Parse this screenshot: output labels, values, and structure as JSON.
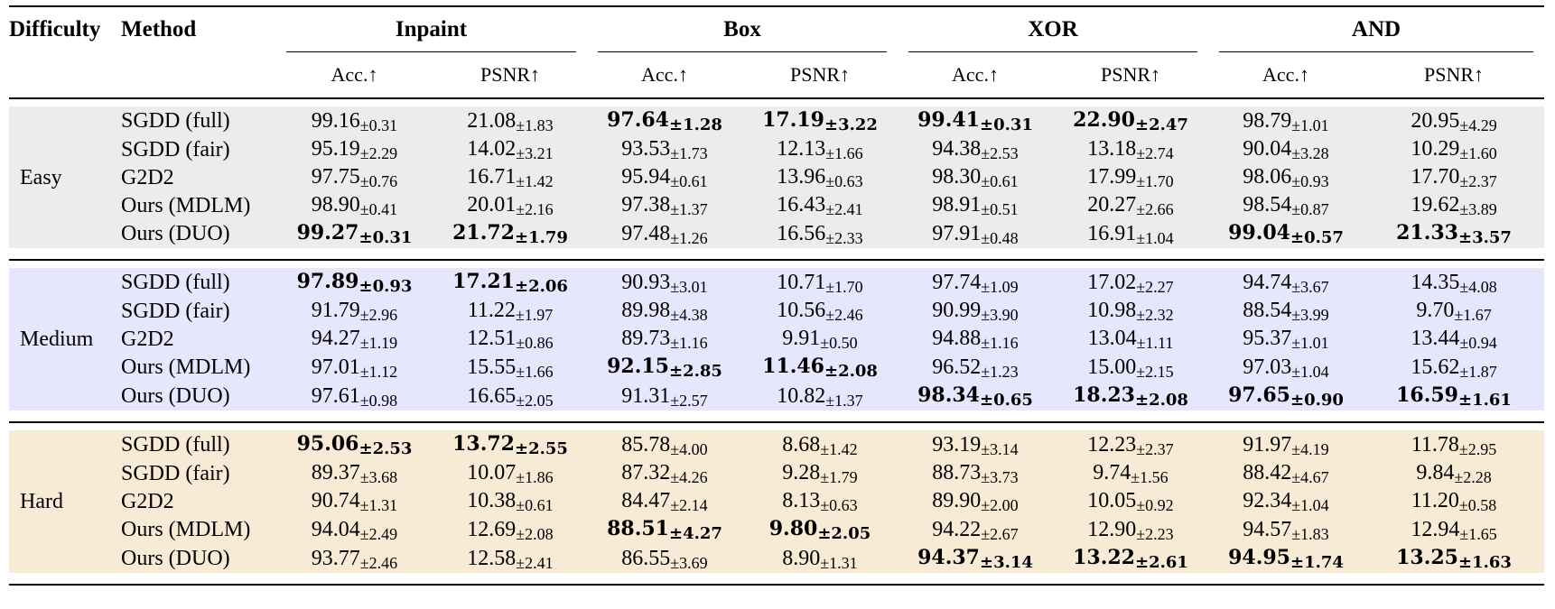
{
  "colors": {
    "easy_bg": "#ececec",
    "medium_bg": "#e6e6fc",
    "hard_bg": "#f8ebd6"
  },
  "header": {
    "difficulty": "Difficulty",
    "method": "Method",
    "tasks": [
      "Inpaint",
      "Box",
      "XOR",
      "AND"
    ],
    "metrics": [
      "Acc.↑",
      "PSNR↑"
    ]
  },
  "groups": [
    {
      "name": "Easy",
      "rows": [
        {
          "method": "SGDD (full)",
          "cells": [
            {
              "v": "99.16",
              "sd": "±0.31",
              "best": false
            },
            {
              "v": "21.08",
              "sd": "±1.83",
              "best": false
            },
            {
              "v": "97.64",
              "sd": "±1.28",
              "best": true
            },
            {
              "v": "17.19",
              "sd": "±3.22",
              "best": true
            },
            {
              "v": "99.41",
              "sd": "±0.31",
              "best": true
            },
            {
              "v": "22.90",
              "sd": "±2.47",
              "best": true
            },
            {
              "v": "98.79",
              "sd": "±1.01",
              "best": false
            },
            {
              "v": "20.95",
              "sd": "±4.29",
              "best": false
            }
          ]
        },
        {
          "method": "SGDD (fair)",
          "cells": [
            {
              "v": "95.19",
              "sd": "±2.29",
              "best": false
            },
            {
              "v": "14.02",
              "sd": "±3.21",
              "best": false
            },
            {
              "v": "93.53",
              "sd": "±1.73",
              "best": false
            },
            {
              "v": "12.13",
              "sd": "±1.66",
              "best": false
            },
            {
              "v": "94.38",
              "sd": "±2.53",
              "best": false
            },
            {
              "v": "13.18",
              "sd": "±2.74",
              "best": false
            },
            {
              "v": "90.04",
              "sd": "±3.28",
              "best": false
            },
            {
              "v": "10.29",
              "sd": "±1.60",
              "best": false
            }
          ]
        },
        {
          "method": "G2D2",
          "cells": [
            {
              "v": "97.75",
              "sd": "±0.76",
              "best": false
            },
            {
              "v": "16.71",
              "sd": "±1.42",
              "best": false
            },
            {
              "v": "95.94",
              "sd": "±0.61",
              "best": false
            },
            {
              "v": "13.96",
              "sd": "±0.63",
              "best": false
            },
            {
              "v": "98.30",
              "sd": "±0.61",
              "best": false
            },
            {
              "v": "17.99",
              "sd": "±1.70",
              "best": false
            },
            {
              "v": "98.06",
              "sd": "±0.93",
              "best": false
            },
            {
              "v": "17.70",
              "sd": "±2.37",
              "best": false
            }
          ]
        },
        {
          "method": "Ours (MDLM)",
          "cells": [
            {
              "v": "98.90",
              "sd": "±0.41",
              "best": false
            },
            {
              "v": "20.01",
              "sd": "±2.16",
              "best": false
            },
            {
              "v": "97.38",
              "sd": "±1.37",
              "best": false
            },
            {
              "v": "16.43",
              "sd": "±2.41",
              "best": false
            },
            {
              "v": "98.91",
              "sd": "±0.51",
              "best": false
            },
            {
              "v": "20.27",
              "sd": "±2.66",
              "best": false
            },
            {
              "v": "98.54",
              "sd": "±0.87",
              "best": false
            },
            {
              "v": "19.62",
              "sd": "±3.89",
              "best": false
            }
          ]
        },
        {
          "method": "Ours (DUO)",
          "cells": [
            {
              "v": "99.27",
              "sd": "±0.31",
              "best": true
            },
            {
              "v": "21.72",
              "sd": "±1.79",
              "best": true
            },
            {
              "v": "97.48",
              "sd": "±1.26",
              "best": false
            },
            {
              "v": "16.56",
              "sd": "±2.33",
              "best": false
            },
            {
              "v": "97.91",
              "sd": "±0.48",
              "best": false
            },
            {
              "v": "16.91",
              "sd": "±1.04",
              "best": false
            },
            {
              "v": "99.04",
              "sd": "±0.57",
              "best": true
            },
            {
              "v": "21.33",
              "sd": "±3.57",
              "best": true
            }
          ]
        }
      ]
    },
    {
      "name": "Medium",
      "rows": [
        {
          "method": "SGDD (full)",
          "cells": [
            {
              "v": "97.89",
              "sd": "±0.93",
              "best": true
            },
            {
              "v": "17.21",
              "sd": "±2.06",
              "best": true
            },
            {
              "v": "90.93",
              "sd": "±3.01",
              "best": false
            },
            {
              "v": "10.71",
              "sd": "±1.70",
              "best": false
            },
            {
              "v": "97.74",
              "sd": "±1.09",
              "best": false
            },
            {
              "v": "17.02",
              "sd": "±2.27",
              "best": false
            },
            {
              "v": "94.74",
              "sd": "±3.67",
              "best": false
            },
            {
              "v": "14.35",
              "sd": "±4.08",
              "best": false
            }
          ]
        },
        {
          "method": "SGDD (fair)",
          "cells": [
            {
              "v": "91.79",
              "sd": "±2.96",
              "best": false
            },
            {
              "v": "11.22",
              "sd": "±1.97",
              "best": false
            },
            {
              "v": "89.98",
              "sd": "±4.38",
              "best": false
            },
            {
              "v": "10.56",
              "sd": "±2.46",
              "best": false
            },
            {
              "v": "90.99",
              "sd": "±3.90",
              "best": false
            },
            {
              "v": "10.98",
              "sd": "±2.32",
              "best": false
            },
            {
              "v": "88.54",
              "sd": "±3.99",
              "best": false
            },
            {
              "v": "9.70",
              "sd": "±1.67",
              "best": false
            }
          ]
        },
        {
          "method": "G2D2",
          "cells": [
            {
              "v": "94.27",
              "sd": "±1.19",
              "best": false
            },
            {
              "v": "12.51",
              "sd": "±0.86",
              "best": false
            },
            {
              "v": "89.73",
              "sd": "±1.16",
              "best": false
            },
            {
              "v": "9.91",
              "sd": "±0.50",
              "best": false
            },
            {
              "v": "94.88",
              "sd": "±1.16",
              "best": false
            },
            {
              "v": "13.04",
              "sd": "±1.11",
              "best": false
            },
            {
              "v": "95.37",
              "sd": "±1.01",
              "best": false
            },
            {
              "v": "13.44",
              "sd": "±0.94",
              "best": false
            }
          ]
        },
        {
          "method": "Ours (MDLM)",
          "cells": [
            {
              "v": "97.01",
              "sd": "±1.12",
              "best": false
            },
            {
              "v": "15.55",
              "sd": "±1.66",
              "best": false
            },
            {
              "v": "92.15",
              "sd": "±2.85",
              "best": true
            },
            {
              "v": "11.46",
              "sd": "±2.08",
              "best": true
            },
            {
              "v": "96.52",
              "sd": "±1.23",
              "best": false
            },
            {
              "v": "15.00",
              "sd": "±2.15",
              "best": false
            },
            {
              "v": "97.03",
              "sd": "±1.04",
              "best": false
            },
            {
              "v": "15.62",
              "sd": "±1.87",
              "best": false
            }
          ]
        },
        {
          "method": "Ours (DUO)",
          "cells": [
            {
              "v": "97.61",
              "sd": "±0.98",
              "best": false
            },
            {
              "v": "16.65",
              "sd": "±2.05",
              "best": false
            },
            {
              "v": "91.31",
              "sd": "±2.57",
              "best": false
            },
            {
              "v": "10.82",
              "sd": "±1.37",
              "best": false
            },
            {
              "v": "98.34",
              "sd": "±0.65",
              "best": true
            },
            {
              "v": "18.23",
              "sd": "±2.08",
              "best": true
            },
            {
              "v": "97.65",
              "sd": "±0.90",
              "best": true
            },
            {
              "v": "16.59",
              "sd": "±1.61",
              "best": true
            }
          ]
        }
      ]
    },
    {
      "name": "Hard",
      "rows": [
        {
          "method": "SGDD (full)",
          "cells": [
            {
              "v": "95.06",
              "sd": "±2.53",
              "best": true
            },
            {
              "v": "13.72",
              "sd": "±2.55",
              "best": true
            },
            {
              "v": "85.78",
              "sd": "±4.00",
              "best": false
            },
            {
              "v": "8.68",
              "sd": "±1.42",
              "best": false
            },
            {
              "v": "93.19",
              "sd": "±3.14",
              "best": false
            },
            {
              "v": "12.23",
              "sd": "±2.37",
              "best": false
            },
            {
              "v": "91.97",
              "sd": "±4.19",
              "best": false
            },
            {
              "v": "11.78",
              "sd": "±2.95",
              "best": false
            }
          ]
        },
        {
          "method": "SGDD (fair)",
          "cells": [
            {
              "v": "89.37",
              "sd": "±3.68",
              "best": false
            },
            {
              "v": "10.07",
              "sd": "±1.86",
              "best": false
            },
            {
              "v": "87.32",
              "sd": "±4.26",
              "best": false
            },
            {
              "v": "9.28",
              "sd": "±1.79",
              "best": false
            },
            {
              "v": "88.73",
              "sd": "±3.73",
              "best": false
            },
            {
              "v": "9.74",
              "sd": "±1.56",
              "best": false
            },
            {
              "v": "88.42",
              "sd": "±4.67",
              "best": false
            },
            {
              "v": "9.84",
              "sd": "±2.28",
              "best": false
            }
          ]
        },
        {
          "method": "G2D2",
          "cells": [
            {
              "v": "90.74",
              "sd": "±1.31",
              "best": false
            },
            {
              "v": "10.38",
              "sd": "±0.61",
              "best": false
            },
            {
              "v": "84.47",
              "sd": "±2.14",
              "best": false
            },
            {
              "v": "8.13",
              "sd": "±0.63",
              "best": false
            },
            {
              "v": "89.90",
              "sd": "±2.00",
              "best": false
            },
            {
              "v": "10.05",
              "sd": "±0.92",
              "best": false
            },
            {
              "v": "92.34",
              "sd": "±1.04",
              "best": false
            },
            {
              "v": "11.20",
              "sd": "±0.58",
              "best": false
            }
          ]
        },
        {
          "method": "Ours (MDLM)",
          "cells": [
            {
              "v": "94.04",
              "sd": "±2.49",
              "best": false
            },
            {
              "v": "12.69",
              "sd": "±2.08",
              "best": false
            },
            {
              "v": "88.51",
              "sd": "±4.27",
              "best": true
            },
            {
              "v": "9.80",
              "sd": "±2.05",
              "best": true
            },
            {
              "v": "94.22",
              "sd": "±2.67",
              "best": false
            },
            {
              "v": "12.90",
              "sd": "±2.23",
              "best": false
            },
            {
              "v": "94.57",
              "sd": "±1.83",
              "best": false
            },
            {
              "v": "12.94",
              "sd": "±1.65",
              "best": false
            }
          ]
        },
        {
          "method": "Ours (DUO)",
          "cells": [
            {
              "v": "93.77",
              "sd": "±2.46",
              "best": false
            },
            {
              "v": "12.58",
              "sd": "±2.41",
              "best": false
            },
            {
              "v": "86.55",
              "sd": "±3.69",
              "best": false
            },
            {
              "v": "8.90",
              "sd": "±1.31",
              "best": false
            },
            {
              "v": "94.37",
              "sd": "±3.14",
              "best": true
            },
            {
              "v": "13.22",
              "sd": "±2.61",
              "best": true
            },
            {
              "v": "94.95",
              "sd": "±1.74",
              "best": true
            },
            {
              "v": "13.25",
              "sd": "±1.63",
              "best": true
            }
          ]
        }
      ]
    }
  ]
}
